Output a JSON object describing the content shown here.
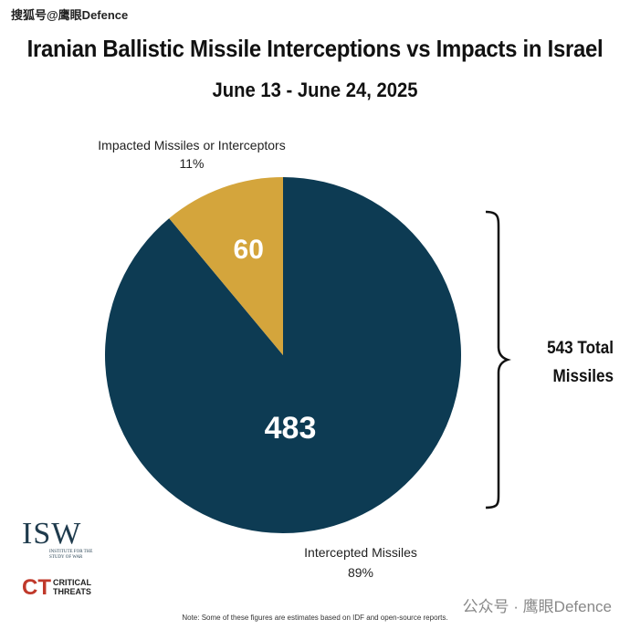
{
  "watermark_top": "搜狐号@鹰眼Defence",
  "watermark_bottom": "公众号 · 鹰眼Defence",
  "chart_data": {
    "type": "pie",
    "title": "Iranian Ballistic Missile Interceptions vs Impacts in Israel",
    "subtitle": "June 13 - June 24, 2025",
    "slices": [
      {
        "label": "Intercepted Missiles",
        "value": 483,
        "percent": "89%",
        "color": "#0d3b53"
      },
      {
        "label": "Impacted Missiles or Interceptors",
        "value": 60,
        "percent": "11%",
        "color": "#d4a53c"
      }
    ],
    "total_label_line1": "543 Total",
    "total_label_line2": "Missiles"
  },
  "logos": {
    "isw_mark": "ISW",
    "isw_sub_1": "INSTITUTE FOR THE",
    "isw_sub_2": "STUDY OF WAR",
    "ct_mark": "CT",
    "ct_text_1": "CRITICAL",
    "ct_text_2": "THREATS"
  },
  "note": "Note: Some of these figures are estimates based on IDF and open-source reports."
}
